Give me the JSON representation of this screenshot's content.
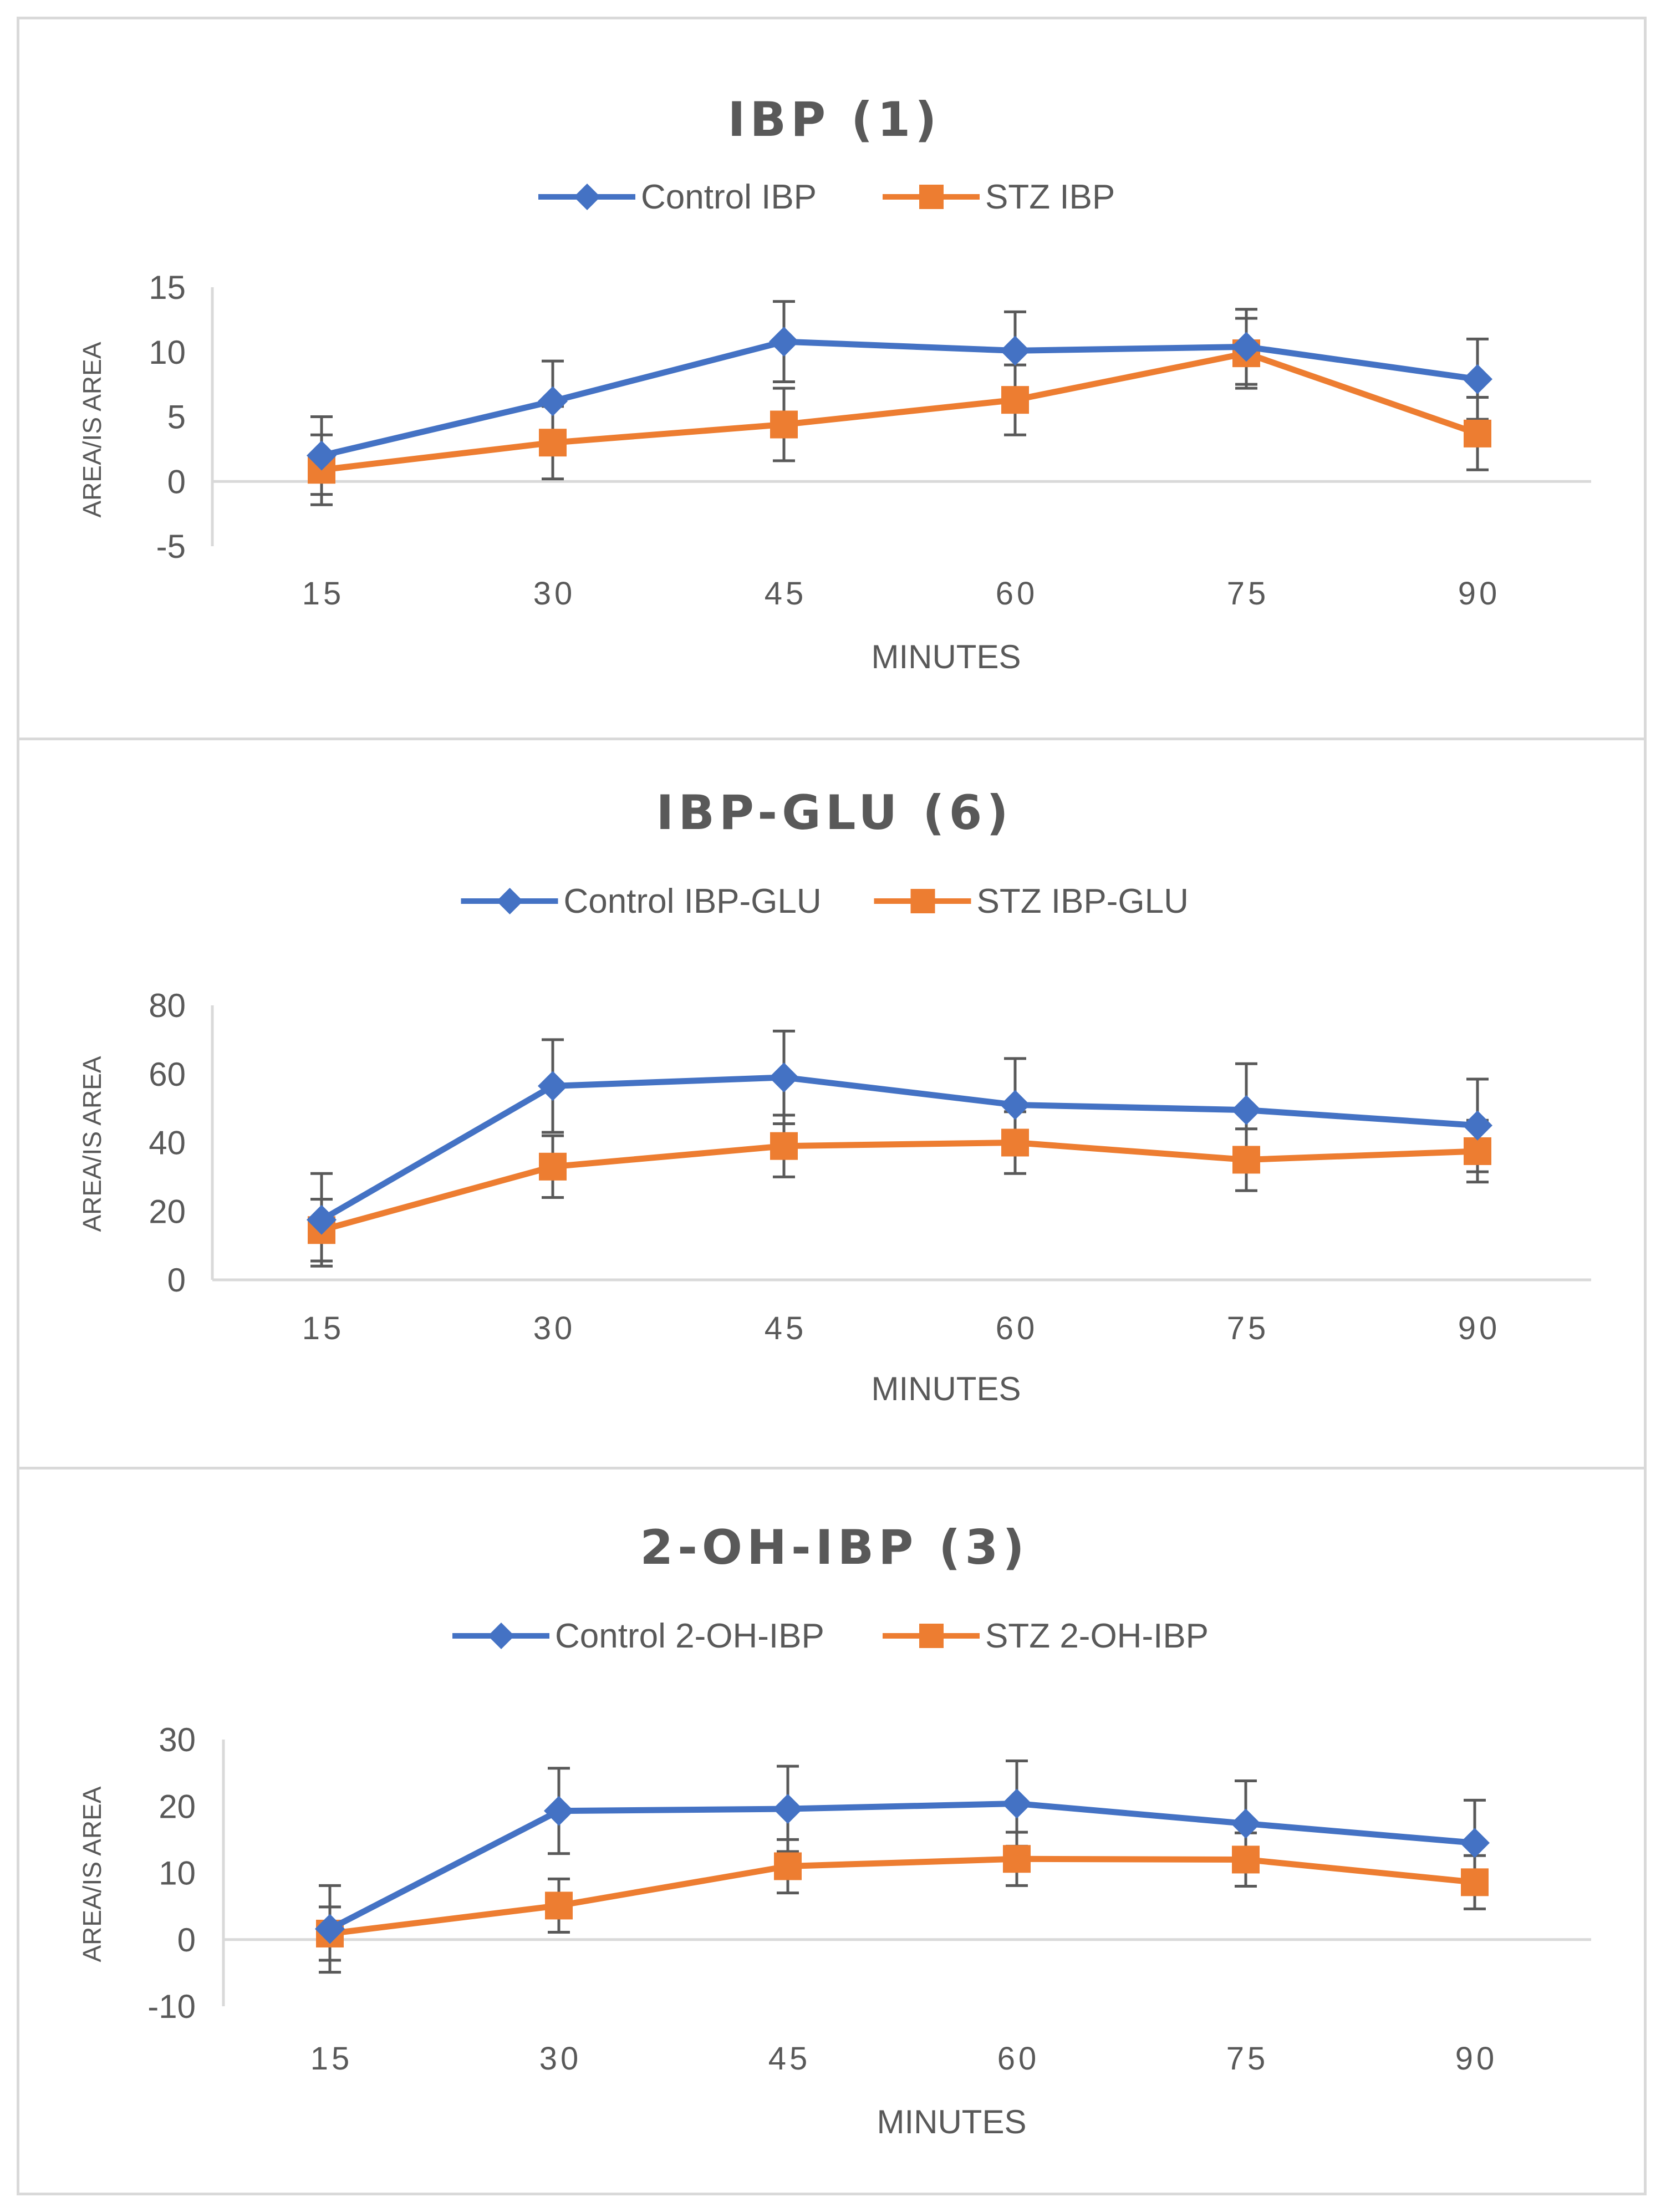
{
  "chart_data": [
    {
      "type": "line",
      "title": "IBP (1)",
      "xlabel": "MINUTES",
      "ylabel": "AREA/IS AREA",
      "categories": [
        "15",
        "30",
        "45",
        "60",
        "75",
        "90"
      ],
      "ylim": [
        -5,
        15
      ],
      "yticks": [
        "15",
        "10",
        "5",
        "0",
        "-5"
      ],
      "series": [
        {
          "name": "Control IBP",
          "color": "#4472C4",
          "marker": "diamond",
          "values": [
            2.0,
            6.2,
            10.8,
            10.1,
            10.4,
            7.9
          ],
          "errors": [
            3.0,
            3.1,
            3.1,
            3.0,
            2.9,
            3.1
          ]
        },
        {
          "name": "STZ IBP",
          "color": "#ED7D31",
          "marker": "square",
          "values": [
            0.9,
            3.0,
            4.4,
            6.3,
            9.9,
            3.7
          ],
          "errors": [
            2.7,
            2.8,
            2.8,
            2.7,
            2.7,
            2.8
          ]
        }
      ]
    },
    {
      "type": "line",
      "title": "IBP-GLU (6)",
      "xlabel": "MINUTES",
      "ylabel": "AREA/IS AREA",
      "categories": [
        "15",
        "30",
        "45",
        "60",
        "75",
        "90"
      ],
      "ylim": [
        0,
        80
      ],
      "yticks": [
        "80",
        "60",
        "40",
        "20",
        "0"
      ],
      "series": [
        {
          "name": "Control IBP-GLU",
          "color": "#4472C4",
          "marker": "diamond",
          "values": [
            17.5,
            56.5,
            59.0,
            51.0,
            49.5,
            45.0
          ],
          "errors": [
            13.5,
            13.5,
            13.5,
            13.5,
            13.5,
            13.5
          ]
        },
        {
          "name": "STZ  IBP-GLU",
          "color": "#ED7D31",
          "marker": "square",
          "values": [
            14.5,
            33.0,
            39.0,
            40.0,
            35.0,
            37.5
          ],
          "errors": [
            9.0,
            9.0,
            9.0,
            9.0,
            9.0,
            9.0
          ]
        }
      ]
    },
    {
      "type": "line",
      "title": "2-OH-IBP (3)",
      "xlabel": "MINUTES",
      "ylabel": "AREA/IS AREA",
      "categories": [
        "15",
        "30",
        "45",
        "60",
        "75",
        "90"
      ],
      "ylim": [
        -10,
        30
      ],
      "yticks": [
        "30",
        "20",
        "10",
        "0",
        "-10"
      ],
      "series": [
        {
          "name": "Control 2-OH-IBP",
          "color": "#4472C4",
          "marker": "diamond",
          "values": [
            1.6,
            19.3,
            19.6,
            20.4,
            17.4,
            14.5
          ],
          "errors": [
            6.5,
            6.4,
            6.4,
            6.4,
            6.4,
            6.4
          ]
        },
        {
          "name": "STZ 2-OH-IBP",
          "color": "#ED7D31",
          "marker": "square",
          "values": [
            0.9,
            5.1,
            11.0,
            12.1,
            12.0,
            8.6
          ],
          "errors": [
            4.0,
            4.0,
            4.0,
            4.0,
            4.0,
            4.0
          ]
        }
      ]
    }
  ]
}
